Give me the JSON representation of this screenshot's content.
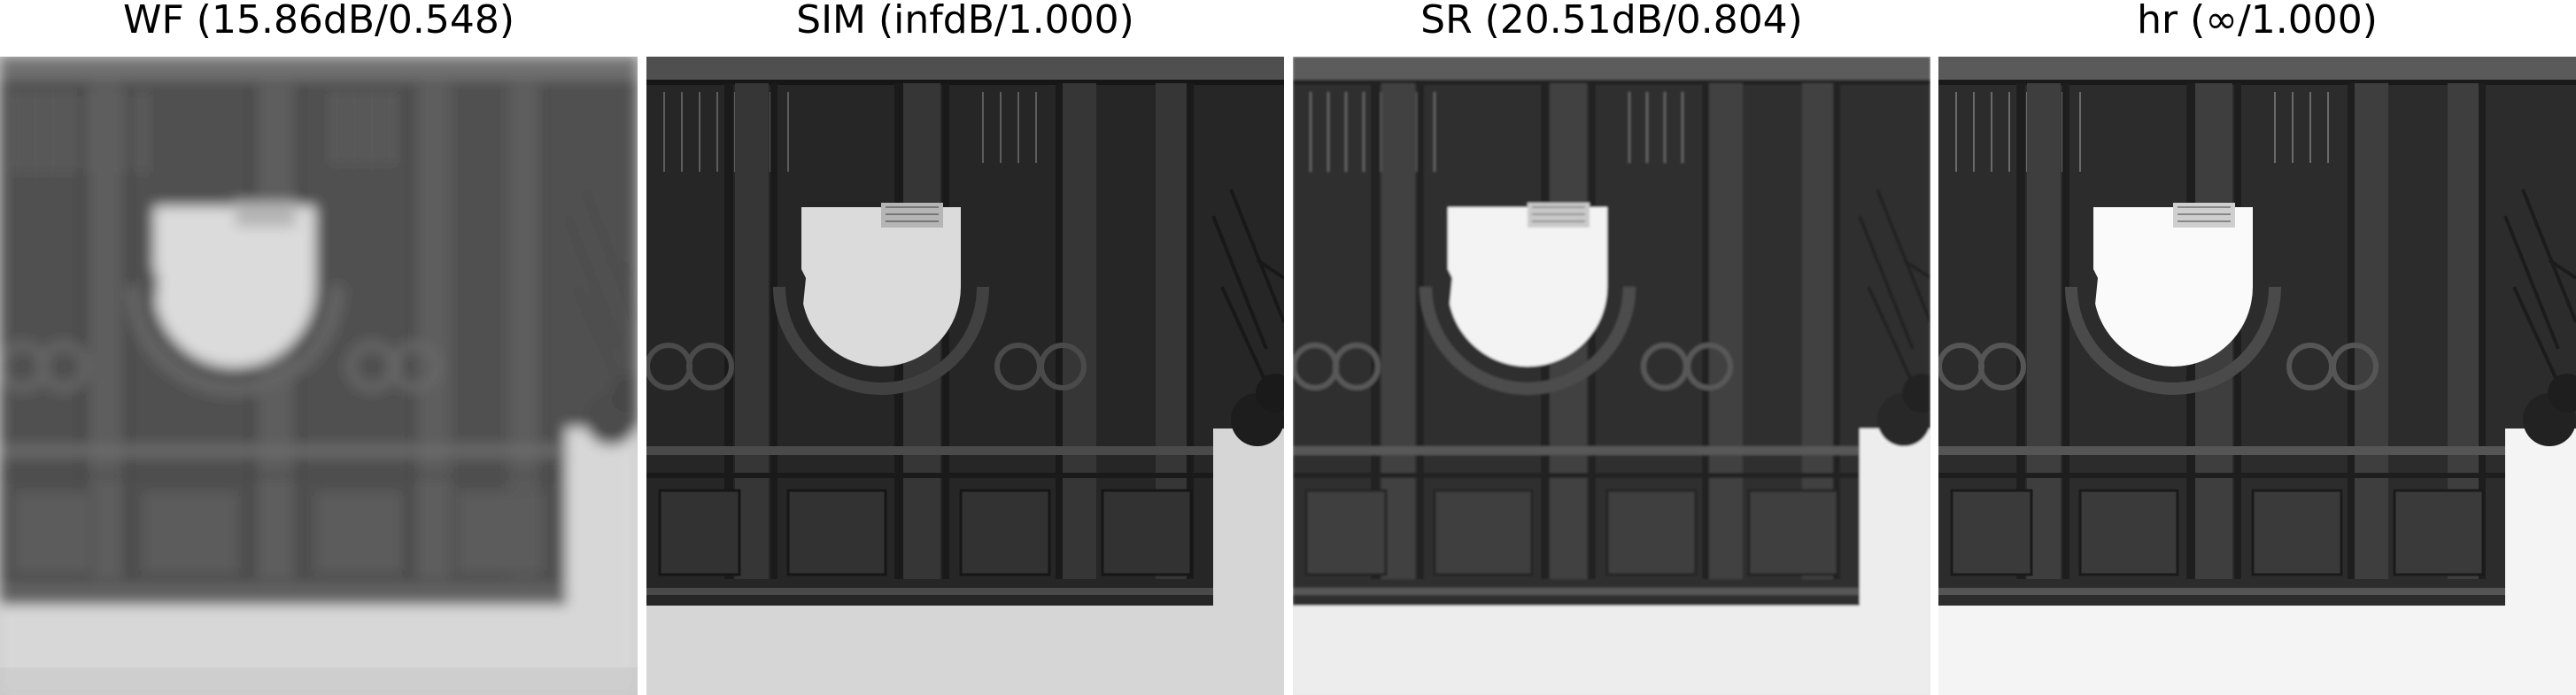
{
  "figure": {
    "panels": [
      {
        "title": "WF (15.86dB/0.548)",
        "image": "blurred-widefield-grayscale-arch-facade"
      },
      {
        "title": "SIM (infdB/1.000)",
        "image": "sharp-sim-grayscale-arch-facade"
      },
      {
        "title": "SR (20.51dB/0.804)",
        "image": "super-resolved-grayscale-arch-facade"
      },
      {
        "title": "hr (∞/1.000)",
        "image": "high-resolution-grayscale-arch-facade"
      }
    ]
  }
}
